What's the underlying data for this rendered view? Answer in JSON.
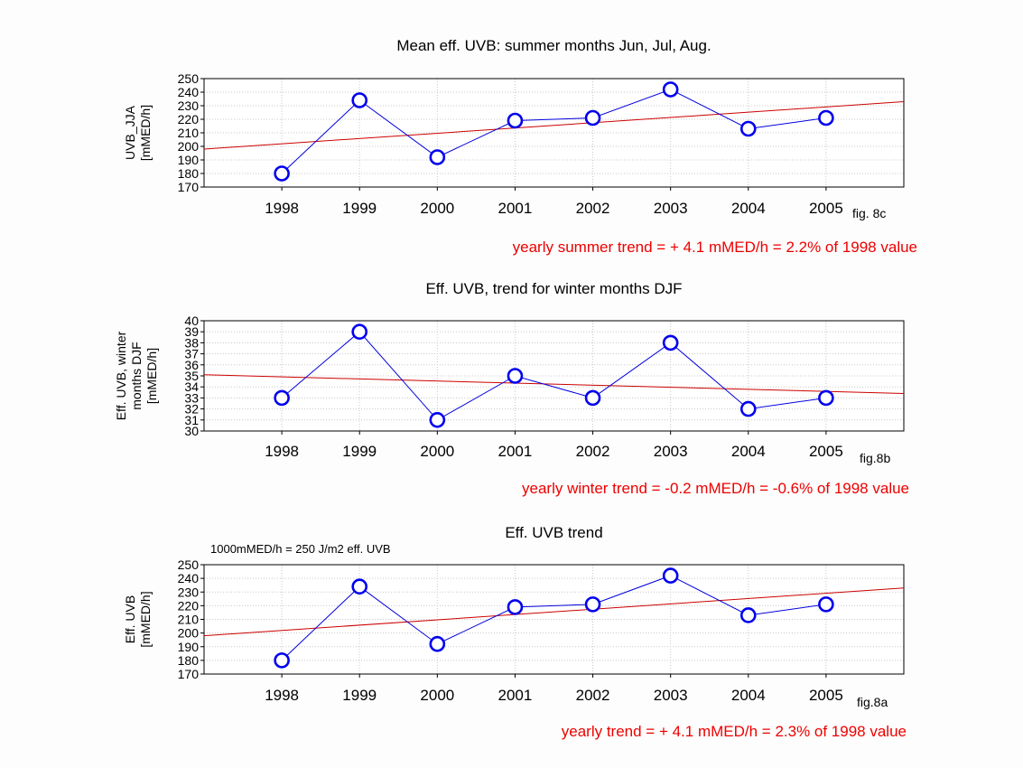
{
  "chart_data": [
    {
      "type": "line",
      "title": "Mean eff. UVB: summer months Jun, Jul, Aug.",
      "ylabel": [
        "UVB_JJA",
        "[mMED/h]"
      ],
      "x": [
        1998,
        1999,
        2000,
        2001,
        2002,
        2003,
        2004,
        2005
      ],
      "values": [
        180,
        234,
        192,
        219,
        221,
        242,
        213,
        221
      ],
      "xlim": [
        1997,
        2006
      ],
      "ylim": [
        170,
        250
      ],
      "yticks": [
        170,
        180,
        190,
        200,
        210,
        220,
        230,
        240,
        250
      ],
      "trend": {
        "y_start": 198,
        "y_end": 233
      },
      "fig_label": "fig. 8c",
      "trend_text": "yearly summer trend = + 4.1 mMED/h = 2.2% of 1998 value",
      "note": ""
    },
    {
      "type": "line",
      "title": "Eff. UVB, trend for winter months DJF",
      "ylabel": [
        "Eff. UVB, winter",
        "months DJF",
        "[mMED/h]"
      ],
      "x": [
        1998,
        1999,
        2000,
        2001,
        2002,
        2003,
        2004,
        2005
      ],
      "values": [
        33,
        39,
        31,
        35,
        33,
        38,
        32,
        33
      ],
      "xlim": [
        1997,
        2006
      ],
      "ylim": [
        30,
        40
      ],
      "yticks": [
        30,
        31,
        32,
        33,
        34,
        35,
        36,
        37,
        38,
        39,
        40
      ],
      "trend": {
        "y_start": 35.1,
        "y_end": 33.4
      },
      "fig_label": "fig.8b",
      "trend_text": "yearly winter trend = -0.2 mMED/h = -0.6% of 1998 value",
      "note": ""
    },
    {
      "type": "line",
      "title": "Eff. UVB trend",
      "ylabel": [
        "Eff. UVB",
        "[mMED/h]"
      ],
      "x": [
        1998,
        1999,
        2000,
        2001,
        2002,
        2003,
        2004,
        2005
      ],
      "values": [
        180,
        234,
        192,
        219,
        221,
        242,
        213,
        221
      ],
      "xlim": [
        1997,
        2006
      ],
      "ylim": [
        170,
        250
      ],
      "yticks": [
        170,
        180,
        190,
        200,
        210,
        220,
        230,
        240,
        250
      ],
      "trend": {
        "y_start": 198,
        "y_end": 233
      },
      "fig_label": "fig.8a",
      "trend_text": "yearly trend = + 4.1 mMED/h = 2.3% of 1998 value",
      "note": "1000mMED/h = 250 J/m2 eff. UVB"
    }
  ],
  "colors": {
    "series": "#0000dd",
    "marker": "#0000ee",
    "trend": "#cc0000",
    "trend_text": "#ee0000",
    "grid": "#c8c8c8",
    "axis": "#000000"
  }
}
